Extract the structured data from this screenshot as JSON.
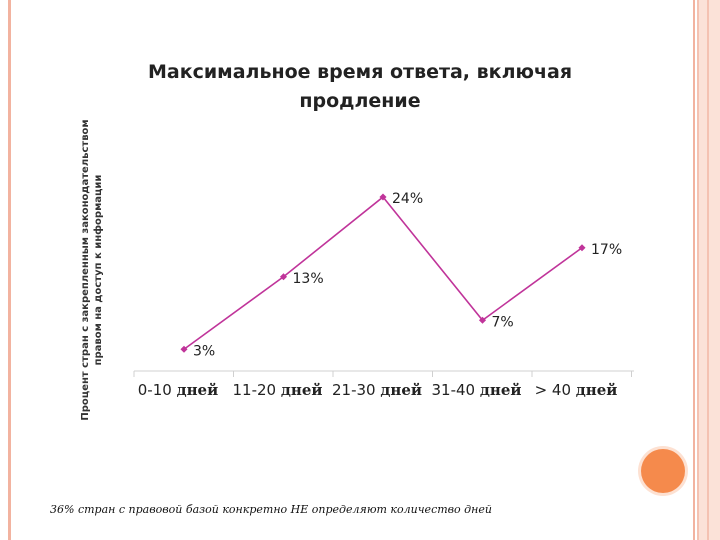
{
  "chart_data": {
    "type": "line",
    "title": "Максимальное время ответа, включая продление",
    "ylabel": "Процент стран с закрепленным законодательством правом на доступ к информации",
    "categories": [
      "0-10 дней",
      "11-20 дней",
      "21-30 дней",
      "31-40 дней",
      "> 40 дней"
    ],
    "values": [
      3,
      13,
      24,
      7,
      17
    ],
    "data_labels": [
      "3%",
      "13%",
      "24%",
      "7%",
      "17%"
    ],
    "series_color": "#c0349a",
    "grid": false,
    "legend": "none"
  },
  "footnote": "36% стран с правовой базой конкретно НЕ определяют количество дней"
}
